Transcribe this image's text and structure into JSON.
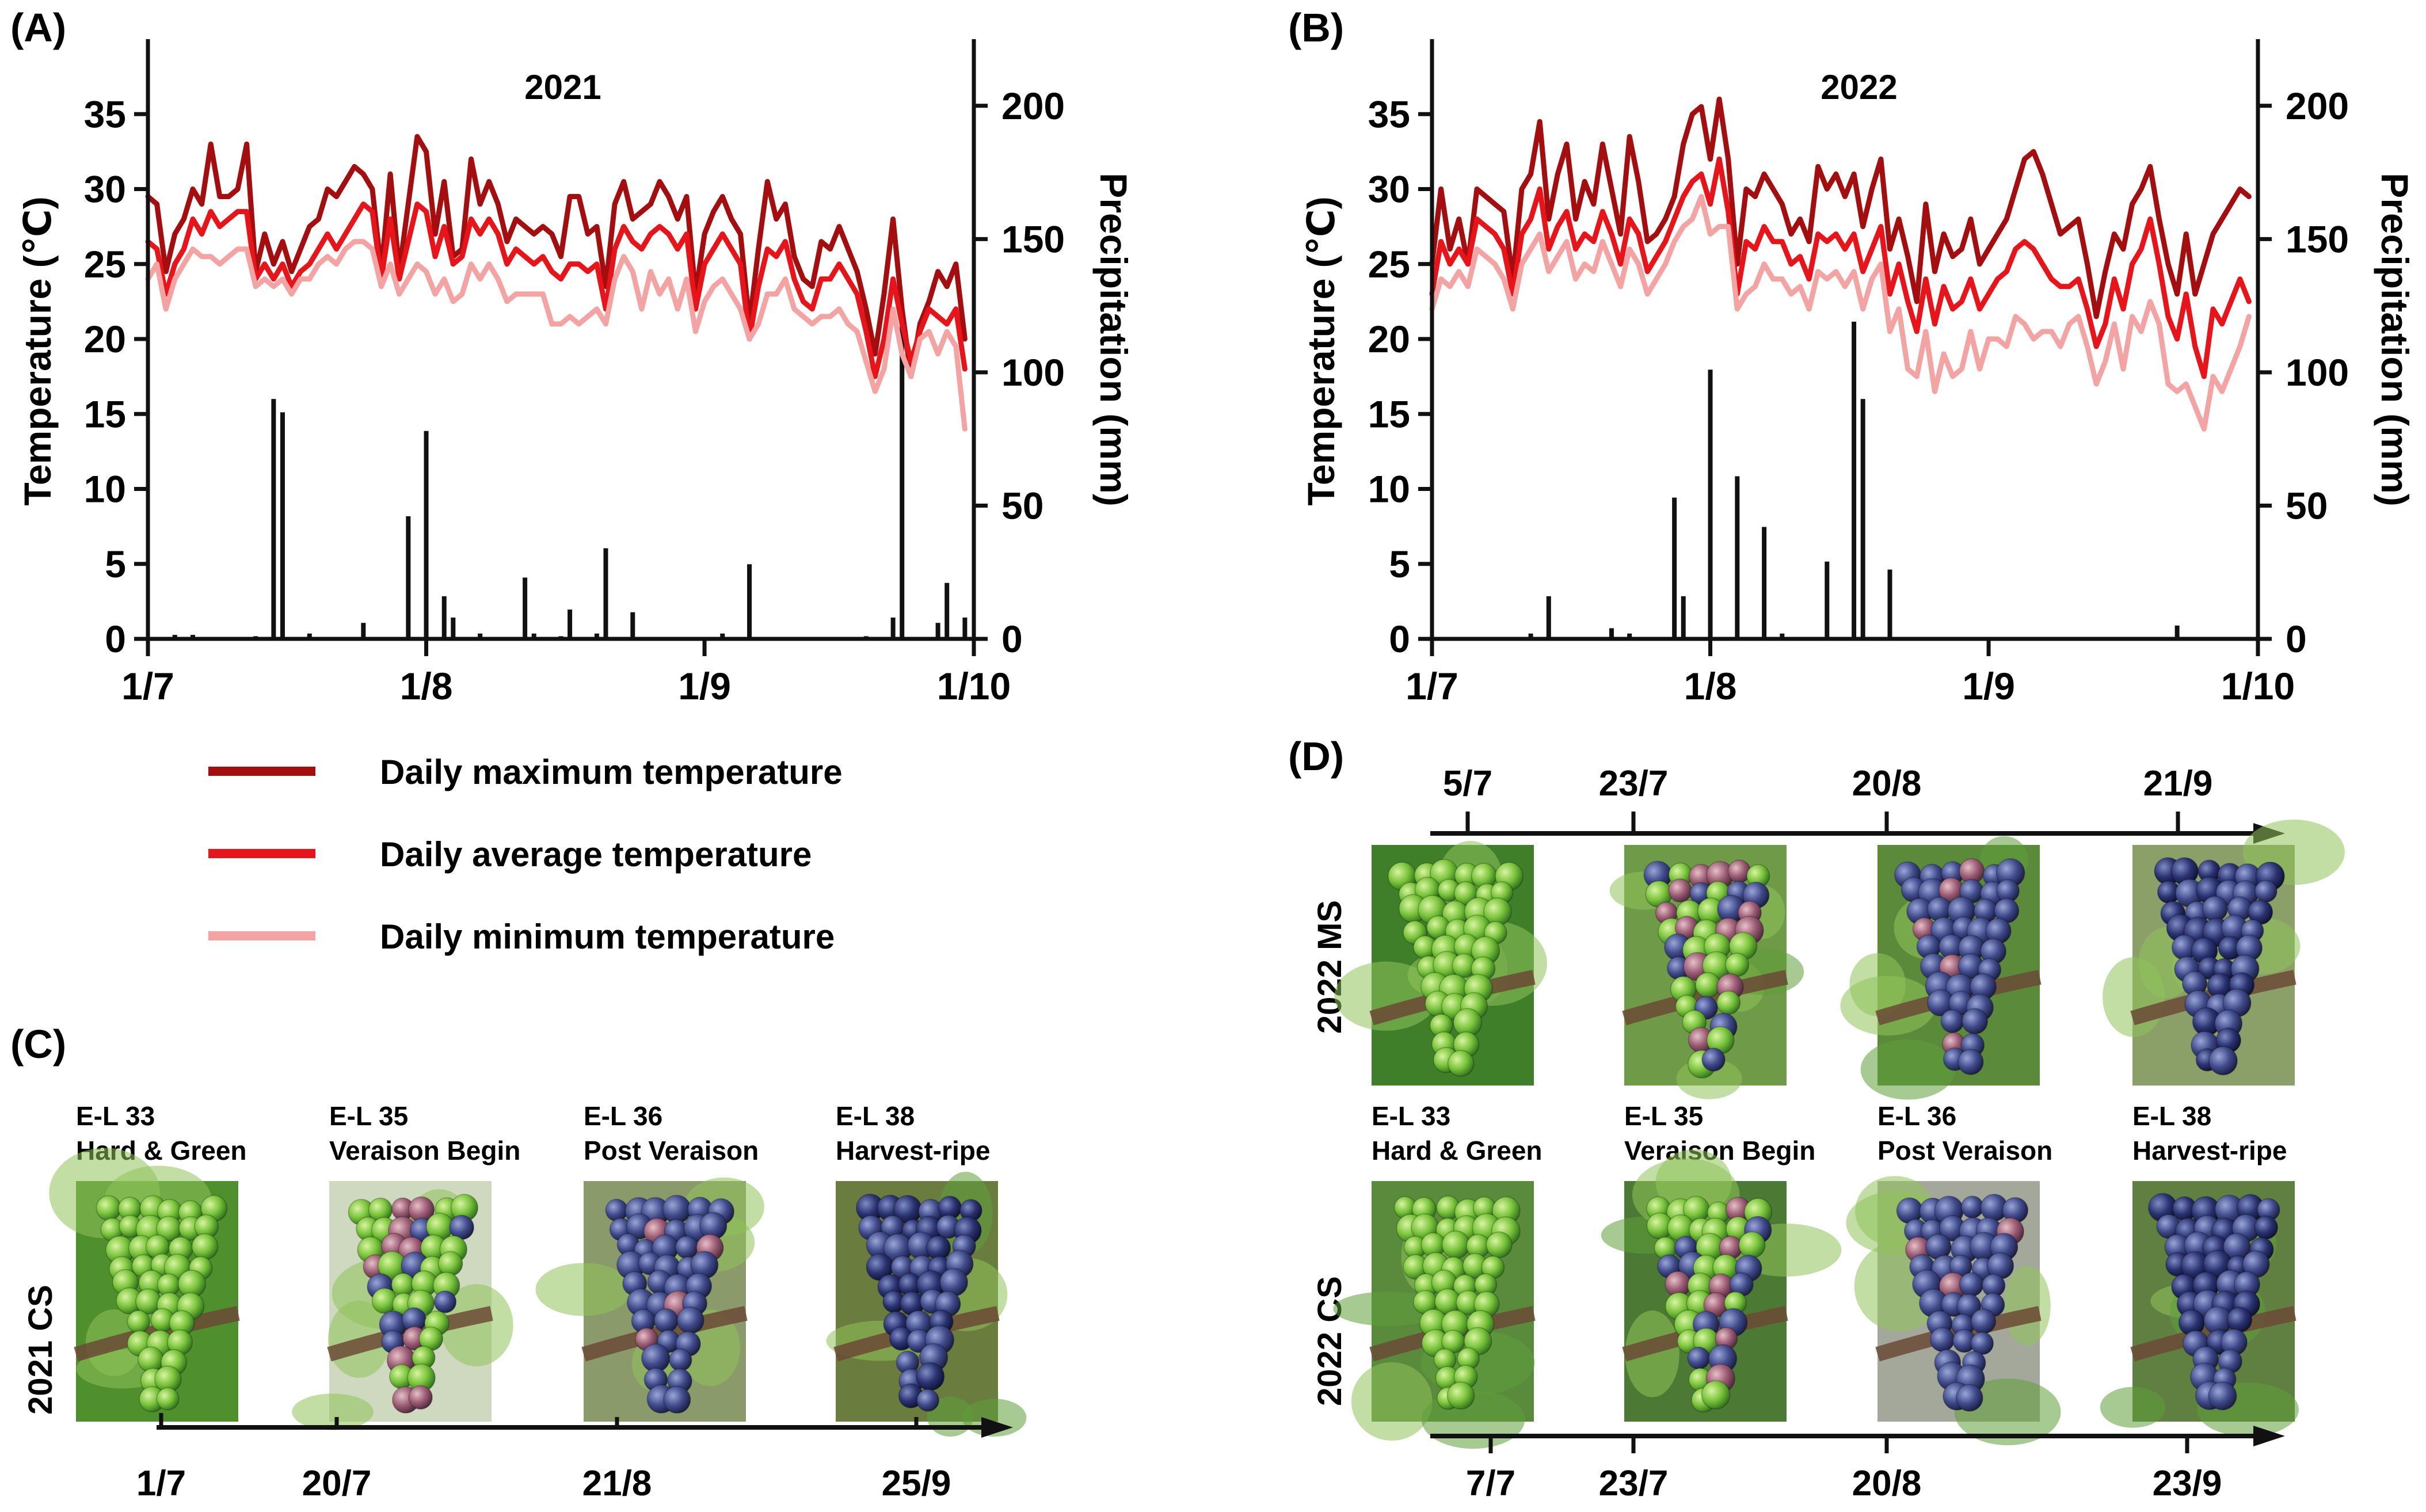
{
  "panels": {
    "A": "(A)",
    "B": "(B)",
    "C": "(C)",
    "D": "(D)"
  },
  "axes": {
    "left_title": "Temperature (℃)",
    "right_title": "Precipitation (mm)",
    "temp_ticks": [
      "0",
      "5",
      "10",
      "15",
      "20",
      "25",
      "30",
      "35"
    ],
    "precip_ticks": [
      "0",
      "50",
      "100",
      "150",
      "200"
    ],
    "x_ticks": [
      "1/7",
      "1/8",
      "1/9",
      "1/10"
    ]
  },
  "legend": [
    {
      "label": "Daily maximum temperature",
      "color": "#a50e0e"
    },
    {
      "label": "Daily average temperature",
      "color": "#e8141a"
    },
    {
      "label": "Daily minimum temperature",
      "color": "#f4a3a3"
    }
  ],
  "chart_data": [
    {
      "type": "line",
      "title": "2021",
      "xlabel": "",
      "ylabel": "Temperature (℃)",
      "y2label": "Precipitation (mm)",
      "ylim": [
        0,
        40
      ],
      "y2lim": [
        0,
        225
      ],
      "x_start": "1/7",
      "x_end": "1/10",
      "days": 92,
      "series": [
        {
          "name": "Daily maximum temperature",
          "color": "#a50e0e",
          "values": [
            29.5,
            29,
            24.5,
            27,
            28,
            30,
            29,
            33,
            29.5,
            29.5,
            30,
            33,
            24.5,
            27,
            25,
            26.5,
            24.5,
            26,
            27.5,
            28,
            30,
            29.5,
            30.5,
            31.5,
            31,
            30,
            24.5,
            31,
            24.5,
            29,
            33.5,
            32.5,
            27,
            30.5,
            25.5,
            26,
            32,
            29,
            30.5,
            29,
            26.5,
            28,
            27.5,
            27,
            27.5,
            27,
            25.5,
            29.5,
            29.5,
            27,
            27.5,
            23.5,
            29,
            30.5,
            28,
            28.5,
            29,
            30.5,
            29.5,
            28,
            29.5,
            23,
            27,
            28.5,
            29.5,
            28,
            27,
            21,
            26,
            30.5,
            28,
            29,
            25.5,
            24,
            23.5,
            26.5,
            26,
            27.5,
            26,
            24.5,
            22,
            19,
            23,
            28,
            22,
            17.5,
            21,
            22.5,
            24.5,
            23.5,
            25,
            20
          ]
        },
        {
          "name": "Daily average temperature",
          "color": "#e8141a",
          "values": [
            26.5,
            26,
            23,
            25,
            26,
            28,
            27,
            28.5,
            27.5,
            28,
            28.5,
            28.5,
            24,
            25,
            24,
            25,
            23.5,
            24.5,
            25,
            26,
            27,
            26,
            27,
            28,
            29,
            28.5,
            24,
            28,
            24,
            26.5,
            29,
            28.5,
            25.5,
            27.5,
            25,
            25.5,
            28,
            27,
            28,
            27,
            25,
            26,
            25.5,
            25,
            25.5,
            24.5,
            24,
            25,
            25,
            24.5,
            25,
            22,
            26,
            27.5,
            26.5,
            26,
            27,
            27.5,
            27,
            26,
            27,
            22,
            25,
            26,
            27,
            26,
            25,
            20,
            23.5,
            26,
            25.5,
            26.5,
            24,
            22.5,
            22,
            24,
            24,
            25,
            24,
            23,
            20.5,
            17.5,
            20,
            24,
            21,
            18.5,
            20.5,
            22,
            21.5,
            21,
            22,
            18
          ]
        },
        {
          "name": "Daily minimum temperature",
          "color": "#f4a3a3",
          "values": [
            24,
            25,
            22,
            24,
            25,
            26,
            25.5,
            25.5,
            25,
            25.5,
            26,
            26,
            23.5,
            24,
            23.5,
            24,
            23,
            24,
            24,
            25,
            25.5,
            25,
            26,
            26.5,
            26.5,
            26,
            23.5,
            25,
            23,
            24,
            25,
            24.5,
            23,
            24,
            22.5,
            23,
            25,
            24,
            25,
            24,
            22.5,
            23,
            23,
            23,
            23,
            21,
            21,
            21.5,
            21,
            21.5,
            22,
            21,
            24,
            25.5,
            24.5,
            22,
            24.5,
            23,
            24,
            22,
            24,
            20.5,
            22.5,
            23.5,
            24,
            23,
            22,
            20,
            21,
            23,
            23,
            24,
            22,
            21.5,
            21,
            21.5,
            21.5,
            22,
            21,
            20.5,
            18.5,
            16.5,
            18,
            22,
            19,
            17.5,
            20,
            20.5,
            19,
            20.5,
            19.5,
            14
          ]
        }
      ],
      "precip_bars": [
        {
          "day": 3,
          "value": 1.5
        },
        {
          "day": 5,
          "value": 1.5
        },
        {
          "day": 12,
          "value": 1
        },
        {
          "day": 14,
          "value": 90
        },
        {
          "day": 15,
          "value": 85
        },
        {
          "day": 18,
          "value": 2
        },
        {
          "day": 24,
          "value": 6
        },
        {
          "day": 29,
          "value": 46
        },
        {
          "day": 31,
          "value": 78
        },
        {
          "day": 33,
          "value": 16
        },
        {
          "day": 34,
          "value": 8
        },
        {
          "day": 37,
          "value": 2
        },
        {
          "day": 42,
          "value": 23
        },
        {
          "day": 43,
          "value": 2
        },
        {
          "day": 46,
          "value": 1
        },
        {
          "day": 47,
          "value": 11
        },
        {
          "day": 50,
          "value": 2
        },
        {
          "day": 51,
          "value": 34
        },
        {
          "day": 54,
          "value": 10
        },
        {
          "day": 64,
          "value": 2
        },
        {
          "day": 67,
          "value": 28
        },
        {
          "day": 80,
          "value": 1
        },
        {
          "day": 83,
          "value": 8
        },
        {
          "day": 84,
          "value": 118
        },
        {
          "day": 88,
          "value": 6
        },
        {
          "day": 89,
          "value": 21
        },
        {
          "day": 91,
          "value": 8
        }
      ]
    },
    {
      "type": "line",
      "title": "2022",
      "xlabel": "",
      "ylabel": "Temperature (℃)",
      "y2label": "Precipitation (mm)",
      "ylim": [
        0,
        40
      ],
      "y2lim": [
        0,
        225
      ],
      "x_start": "1/7",
      "x_end": "1/10",
      "days": 92,
      "series": [
        {
          "name": "Daily maximum temperature",
          "color": "#a50e0e",
          "values": [
            25,
            30,
            26,
            28,
            25,
            30,
            29.5,
            29,
            28.5,
            24,
            30,
            31,
            34.5,
            28,
            31,
            33,
            28,
            30.5,
            29,
            33,
            30,
            27,
            33.5,
            30.5,
            26.5,
            27,
            28,
            29.5,
            33,
            35,
            35.5,
            32,
            36,
            32,
            25,
            30,
            29.5,
            31,
            30,
            29,
            27,
            28,
            26.5,
            31.5,
            30,
            31,
            29.5,
            31,
            27.5,
            30,
            32,
            26,
            28,
            25.5,
            22.5,
            29,
            24.5,
            27,
            25.5,
            26,
            28,
            25,
            26,
            27,
            28,
            30,
            32,
            32.5,
            31,
            29,
            27,
            27.5,
            28,
            25,
            21.5,
            24.5,
            27,
            26,
            29,
            30,
            31.5,
            28,
            25,
            23,
            27,
            23,
            25,
            27,
            28,
            29,
            30,
            29.5
          ]
        },
        {
          "name": "Daily average temperature",
          "color": "#e8141a",
          "values": [
            23,
            26.5,
            25,
            26,
            25,
            28,
            27.5,
            27,
            26,
            23,
            27,
            28,
            30,
            26,
            27.5,
            28.5,
            26,
            27,
            26.5,
            28.5,
            27,
            25,
            28,
            27,
            24.5,
            25.5,
            26.5,
            28,
            29.5,
            30.5,
            31,
            29,
            32,
            28.5,
            23,
            26.5,
            26,
            27.5,
            26.5,
            26.5,
            25,
            25.5,
            24,
            27,
            26.5,
            27,
            26,
            27,
            24.5,
            26,
            27.5,
            23,
            25,
            22.5,
            20.5,
            24,
            21,
            23.5,
            22,
            22.5,
            24,
            22,
            23,
            24,
            24.5,
            26,
            26.5,
            26,
            25,
            24,
            23.5,
            23.5,
            24,
            22,
            19.5,
            21,
            24,
            22,
            25,
            26,
            28,
            25,
            21.5,
            20,
            23,
            19.5,
            17.5,
            22,
            21,
            22.5,
            24,
            22.5
          ]
        },
        {
          "name": "Daily minimum temperature",
          "color": "#f4a3a3",
          "values": [
            22,
            24,
            23.5,
            24.5,
            23.5,
            26,
            25.5,
            25,
            24,
            22,
            25,
            26,
            27,
            24.5,
            25.5,
            26.5,
            24,
            25,
            24.5,
            26.5,
            25,
            23.5,
            26,
            25,
            23,
            24,
            25,
            26.5,
            27.5,
            28,
            29.5,
            27,
            27.5,
            27.5,
            22,
            23,
            23.5,
            25,
            24,
            24,
            23,
            23.5,
            22,
            24.5,
            24,
            24.5,
            23.5,
            24.5,
            22,
            24,
            25,
            20.5,
            22,
            18,
            17.5,
            20.5,
            16.5,
            19,
            17.5,
            18,
            20.5,
            18,
            20,
            20,
            19.5,
            21.5,
            21,
            20,
            20.5,
            20.5,
            19.5,
            21,
            21.5,
            19.5,
            17,
            18.5,
            21,
            18,
            21.5,
            20.5,
            22.5,
            21,
            17,
            16.5,
            17,
            15.5,
            14,
            17.5,
            16.5,
            18,
            19.5,
            21.5
          ]
        }
      ],
      "precip_bars": [
        {
          "day": 11,
          "value": 2
        },
        {
          "day": 13,
          "value": 16
        },
        {
          "day": 20,
          "value": 4
        },
        {
          "day": 22,
          "value": 2
        },
        {
          "day": 27,
          "value": 53
        },
        {
          "day": 28,
          "value": 16
        },
        {
          "day": 31,
          "value": 101
        },
        {
          "day": 34,
          "value": 61
        },
        {
          "day": 37,
          "value": 42
        },
        {
          "day": 39,
          "value": 2
        },
        {
          "day": 44,
          "value": 29
        },
        {
          "day": 47,
          "value": 119
        },
        {
          "day": 48,
          "value": 90
        },
        {
          "day": 51,
          "value": 26
        },
        {
          "day": 83,
          "value": 5
        }
      ]
    }
  ],
  "panel_c": {
    "row_label": "2021 CS",
    "stages": [
      {
        "code": "E-L 33",
        "name": "Hard & Green"
      },
      {
        "code": "E-L 35",
        "name": "Veraison Begin"
      },
      {
        "code": "E-L 36",
        "name": "Post Veraison"
      },
      {
        "code": "E-L 38",
        "name": "Harvest-ripe"
      }
    ],
    "dates": [
      "1/7",
      "20/7",
      "21/8",
      "25/9"
    ]
  },
  "panel_d": {
    "top_dates": [
      "5/7",
      "23/7",
      "20/8",
      "21/9"
    ],
    "row_ms": "2022 MS",
    "row_cs": "2022 CS",
    "stages": [
      {
        "code": "E-L 33",
        "name": "Hard & Green"
      },
      {
        "code": "E-L 35",
        "name": "Veraison Begin"
      },
      {
        "code": "E-L 36",
        "name": "Post Veraison"
      },
      {
        "code": "E-L 38",
        "name": "Harvest-ripe"
      }
    ],
    "bottom_dates": [
      "7/7",
      "23/7",
      "20/8",
      "23/9"
    ]
  },
  "photo_ripeness": [
    0.05,
    0.5,
    0.85,
    1.0
  ]
}
